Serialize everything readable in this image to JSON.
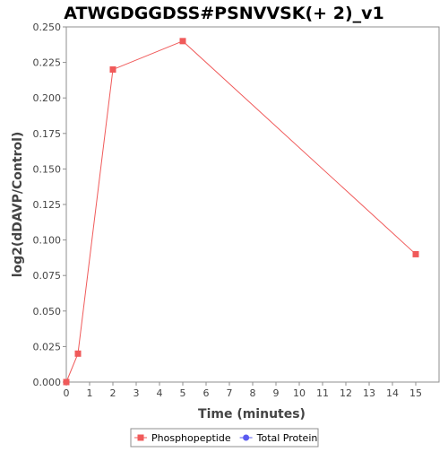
{
  "chart_data": {
    "type": "line",
    "title": "ATWGDGGDSS#PSNVVSK(+ 2)_v1",
    "xlabel": "Time (minutes)",
    "ylabel": "log2(dDAVP/Control)",
    "xlim": [
      0,
      16
    ],
    "ylim": [
      0,
      0.25
    ],
    "x_ticks": [
      0,
      1,
      2,
      3,
      4,
      5,
      6,
      7,
      8,
      9,
      10,
      11,
      12,
      13,
      14,
      15
    ],
    "y_ticks": [
      "0.000",
      "0.025",
      "0.050",
      "0.075",
      "0.100",
      "0.125",
      "0.150",
      "0.175",
      "0.200",
      "0.225",
      "0.250"
    ],
    "grid": false,
    "legend_position": "bottom",
    "series": [
      {
        "name": "Phosphopeptide",
        "marker": "square",
        "color": "#f05a5a",
        "x": [
          0,
          0.5,
          2,
          5,
          15
        ],
        "y": [
          0.0,
          0.02,
          0.22,
          0.24,
          0.09
        ]
      },
      {
        "name": "Total Protein",
        "marker": "circle",
        "color": "#5a5af0",
        "x": [],
        "y": []
      }
    ]
  }
}
